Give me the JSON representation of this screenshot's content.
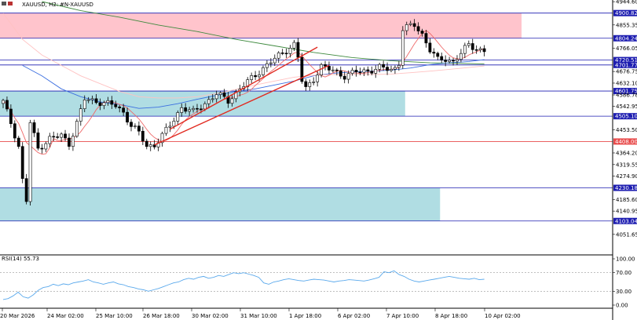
{
  "header": {
    "symbol_text": "XAUUSD, H2:",
    "description": "#N-XAUUSD"
  },
  "rsi_label": "RSI(14) 55.73",
  "colors": {
    "bull": "#ffffff",
    "bear": "#000000",
    "wick": "#000000",
    "resistance_zone": "#ffc4cc",
    "support_zone": "#b0dde3",
    "level_line": "#1c1cb0",
    "red_level": "#e84b4b",
    "ma_fast": "#ef6a6a",
    "ma_mid": "#ffc2c2",
    "ma_blue": "#3c6fe0",
    "ma_green": "#3e8a3e",
    "channel": "#e1291f",
    "rsi_line": "#5aa9ec",
    "price_tag_bg": "#1c1cb0",
    "red_tag_bg": "#e84b4b"
  },
  "chart_data": [
    {
      "type": "candlestick",
      "symbol": "XAUUSD",
      "timeframe": "H2",
      "ylim": [
        4012,
        4945
      ],
      "price_axis_ticks": [
        "4944.60",
        "4900.82",
        "4855.35",
        "4804.24",
        "4766.05",
        "4720.51",
        "4701.77",
        "4676.75",
        "4632.10",
        "4601.75",
        "4586.78",
        "4542.95",
        "4505.10",
        "4453.50",
        "4408.00",
        "4364.20",
        "4319.55",
        "4274.90",
        "4230.18",
        "4185.60",
        "4140.95",
        "4103.04",
        "4051.65"
      ],
      "time_axis_labels": [
        "20 Mar 2026",
        "24 Mar 02:00",
        "25 Mar 10:00",
        "26 Mar 18:00",
        "30 Mar 02:00",
        "31 Mar 10:00",
        "1 Apr 18:00",
        "6 Apr 02:00",
        "7 Apr 10:00",
        "8 Apr 18:00",
        "10 Apr 02:00"
      ],
      "highlighted_levels": [
        {
          "label": "4900.82",
          "value": 4900.82,
          "tag": "blue"
        },
        {
          "label": "4804.24",
          "value": 4804.24,
          "tag": "blue"
        },
        {
          "label": "4720.51",
          "value": 4720.51,
          "tag": "blue"
        },
        {
          "label": "4701.77",
          "value": 4701.77,
          "tag": "blue"
        },
        {
          "label": "4601.75",
          "value": 4601.75,
          "tag": "blue"
        },
        {
          "label": "4505.10",
          "value": 4505.1,
          "tag": "blue"
        },
        {
          "label": "4408.00",
          "value": 4408.0,
          "tag": "red"
        },
        {
          "label": "4230.18",
          "value": 4230.18,
          "tag": "blue"
        },
        {
          "label": "4103.04",
          "value": 4103.04,
          "tag": "blue"
        }
      ],
      "zones": [
        {
          "kind": "resistance",
          "from": 4804.24,
          "to": 4900.82,
          "start_index": 0,
          "end_index": 133
        },
        {
          "kind": "support",
          "from": 4505.1,
          "to": 4601.75,
          "start_index": 0,
          "end_index": 103
        },
        {
          "kind": "support",
          "from": 4103.04,
          "to": 4230.18,
          "start_index": 0,
          "end_index": 112
        }
      ],
      "channel": {
        "lower": {
          "from_index": 39,
          "from_price": 4395,
          "to_index": 84,
          "to_price": 4700
        },
        "upper": {
          "from_index": 43,
          "from_price": 4455,
          "to_index": 81,
          "to_price": 4770
        }
      },
      "anchors": [
        [
          0,
          4560
        ],
        [
          2,
          4480
        ],
        [
          4,
          4390
        ],
        [
          5,
          4260
        ],
        [
          6,
          4180
        ],
        [
          7,
          4480
        ],
        [
          9,
          4380
        ],
        [
          12,
          4420
        ],
        [
          15,
          4430
        ],
        [
          17,
          4400
        ],
        [
          19,
          4480
        ],
        [
          21,
          4570
        ],
        [
          25,
          4560
        ],
        [
          29,
          4545
        ],
        [
          31,
          4520
        ],
        [
          33,
          4470
        ],
        [
          35,
          4440
        ],
        [
          37,
          4390
        ],
        [
          39,
          4395
        ],
        [
          41,
          4430
        ],
        [
          43,
          4470
        ],
        [
          46,
          4540
        ],
        [
          49,
          4520
        ],
        [
          52,
          4555
        ],
        [
          55,
          4590
        ],
        [
          58,
          4565
        ],
        [
          61,
          4610
        ],
        [
          64,
          4650
        ],
        [
          67,
          4690
        ],
        [
          70,
          4725
        ],
        [
          73,
          4760
        ],
        [
          75,
          4780
        ],
        [
          76,
          4730
        ],
        [
          77,
          4640
        ],
        [
          78,
          4610
        ],
        [
          80,
          4650
        ],
        [
          82,
          4695
        ],
        [
          85,
          4680
        ],
        [
          88,
          4660
        ],
        [
          91,
          4675
        ],
        [
          94,
          4680
        ],
        [
          97,
          4690
        ],
        [
          100,
          4685
        ],
        [
          101,
          4690
        ],
        [
          102,
          4710
        ],
        [
          103,
          4840
        ],
        [
          106,
          4855
        ],
        [
          108,
          4820
        ],
        [
          110,
          4760
        ],
        [
          112,
          4720
        ],
        [
          114,
          4725
        ],
        [
          116,
          4715
        ],
        [
          118,
          4745
        ],
        [
          120,
          4780
        ],
        [
          122,
          4765
        ],
        [
          124,
          4755
        ]
      ],
      "series": [
        {
          "name": "candles",
          "count": 125
        },
        {
          "name": "ma_green",
          "points": [
            [
              10,
              4945
            ],
            [
              20,
              4910
            ],
            [
              30,
              4885
            ],
            [
              40,
              4855
            ],
            [
              50,
              4830
            ],
            [
              60,
              4800
            ],
            [
              70,
              4775
            ],
            [
              80,
              4750
            ],
            [
              90,
              4730
            ],
            [
              100,
              4718
            ],
            [
              110,
              4710
            ],
            [
              124,
              4706
            ]
          ]
        },
        {
          "name": "ma_blue",
          "points": [
            [
              5,
              4700
            ],
            [
              10,
              4660
            ],
            [
              15,
              4610
            ],
            [
              20,
              4580
            ],
            [
              25,
              4560
            ],
            [
              30,
              4550
            ],
            [
              35,
              4535
            ],
            [
              40,
              4540
            ],
            [
              45,
              4553
            ],
            [
              50,
              4570
            ],
            [
              55,
              4585
            ],
            [
              60,
              4600
            ],
            [
              65,
              4610
            ],
            [
              70,
              4625
            ],
            [
              75,
              4640
            ],
            [
              80,
              4660
            ],
            [
              85,
              4670
            ],
            [
              90,
              4675
            ],
            [
              95,
              4678
            ],
            [
              100,
              4682
            ],
            [
              105,
              4690
            ],
            [
              110,
              4703
            ],
            [
              115,
              4710
            ],
            [
              120,
              4715
            ],
            [
              124,
              4722
            ]
          ]
        },
        {
          "name": "ma_mid",
          "points": [
            [
              0,
              4900
            ],
            [
              5,
              4800
            ],
            [
              10,
              4740
            ],
            [
              15,
              4700
            ],
            [
              20,
              4660
            ],
            [
              25,
              4630
            ],
            [
              30,
              4600
            ],
            [
              35,
              4580
            ],
            [
              40,
              4575
            ],
            [
              45,
              4575
            ],
            [
              50,
              4580
            ],
            [
              55,
              4592
            ],
            [
              60,
              4608
            ],
            [
              65,
              4625
            ],
            [
              70,
              4640
            ],
            [
              75,
              4655
            ],
            [
              80,
              4662
            ],
            [
              85,
              4665
            ],
            [
              90,
              4665
            ],
            [
              95,
              4665
            ],
            [
              100,
              4667
            ],
            [
              105,
              4672
            ],
            [
              110,
              4678
            ],
            [
              115,
              4685
            ],
            [
              120,
              4692
            ],
            [
              124,
              4698
            ]
          ]
        }
      ]
    },
    {
      "type": "line",
      "title": "RSI(14) 55.73",
      "ylim": [
        0,
        100
      ],
      "y_ticks": [
        "100.00",
        "70.00",
        "30.00",
        "0.00"
      ],
      "values": [
        12,
        14,
        20,
        28,
        18,
        15,
        22,
        32,
        38,
        40,
        45,
        42,
        46,
        44,
        48,
        50,
        52,
        55,
        50,
        48,
        45,
        48,
        50,
        46,
        44,
        40,
        38,
        35,
        33,
        30,
        33,
        36,
        40,
        44,
        48,
        50,
        55,
        58,
        56,
        60,
        62,
        58,
        60,
        64,
        62,
        66,
        70,
        68,
        70,
        67,
        64,
        60,
        48,
        45,
        50,
        52,
        55,
        57,
        55,
        53,
        52,
        54,
        56,
        55,
        54,
        52,
        50,
        52,
        53,
        55,
        54,
        53,
        52,
        54,
        57,
        60,
        72,
        70,
        74,
        66,
        62,
        56,
        52,
        50,
        52,
        54,
        56,
        58,
        60,
        62,
        60,
        58,
        57,
        56,
        58,
        55,
        56
      ]
    }
  ]
}
